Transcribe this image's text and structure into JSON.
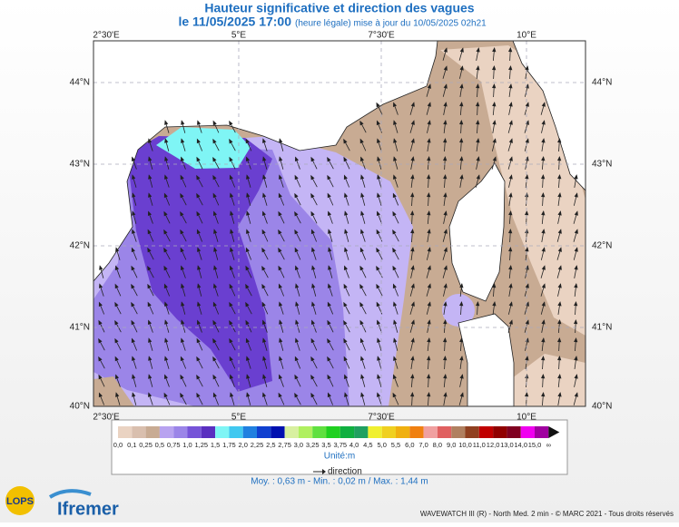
{
  "header": {
    "title": "Hauteur significative et direction des vagues",
    "date": "le 11/05/2025 17:00",
    "note": "(heure légale) mise à jour du 10/05/2025 02h21"
  },
  "map": {
    "lon_labels": [
      "2°30'E",
      "5°E",
      "7°30'E",
      "10°E"
    ],
    "lat_labels": [
      "44°N",
      "43°N",
      "42°N",
      "41°N",
      "40°N"
    ]
  },
  "legend": {
    "labels": [
      "0,0",
      "0,1",
      "0,25",
      "0,5",
      "0,75",
      "1,0",
      "1,25",
      "1,5",
      "1,75",
      "2,0",
      "2,25",
      "2,5",
      "2,75",
      "3,0",
      "3,25",
      "3,5",
      "3,75",
      "4,0",
      "4,5",
      "5,0",
      "5,5",
      "6,0",
      "7,0",
      "8,0",
      "9,0",
      "10,0",
      "11,0",
      "12,0",
      "13,0",
      "14,0",
      "15,0",
      "∞"
    ],
    "colors": [
      "#ead3c2",
      "#d9bfae",
      "#c8ab93",
      "#b8a3f0",
      "#9b85e8",
      "#7654d8",
      "#5a2fc0",
      "#7ff5f5",
      "#40c8f0",
      "#2080e0",
      "#1040d0",
      "#0010b0",
      "#d8f0a0",
      "#b0f060",
      "#60e040",
      "#20d020",
      "#10b040",
      "#20a060",
      "#f0f030",
      "#f0d020",
      "#f0b010",
      "#f08010",
      "#f0a0a0",
      "#e06060",
      "#b08060",
      "#904020",
      "#c00000",
      "#900000",
      "#800020",
      "#f000f0",
      "#a000a0"
    ],
    "unit": "Unité:m",
    "direction": "direction"
  },
  "stats": "Moy. : 0,63 m   -   Min. : 0,02 m / Max. : 1,44 m",
  "footer": {
    "credit": "WAVEWATCH III (R) - North Med. 2 min - © MARC 2021 - Tous droits réservés",
    "logo1": "LOPS",
    "logo2": "Ifremer"
  }
}
